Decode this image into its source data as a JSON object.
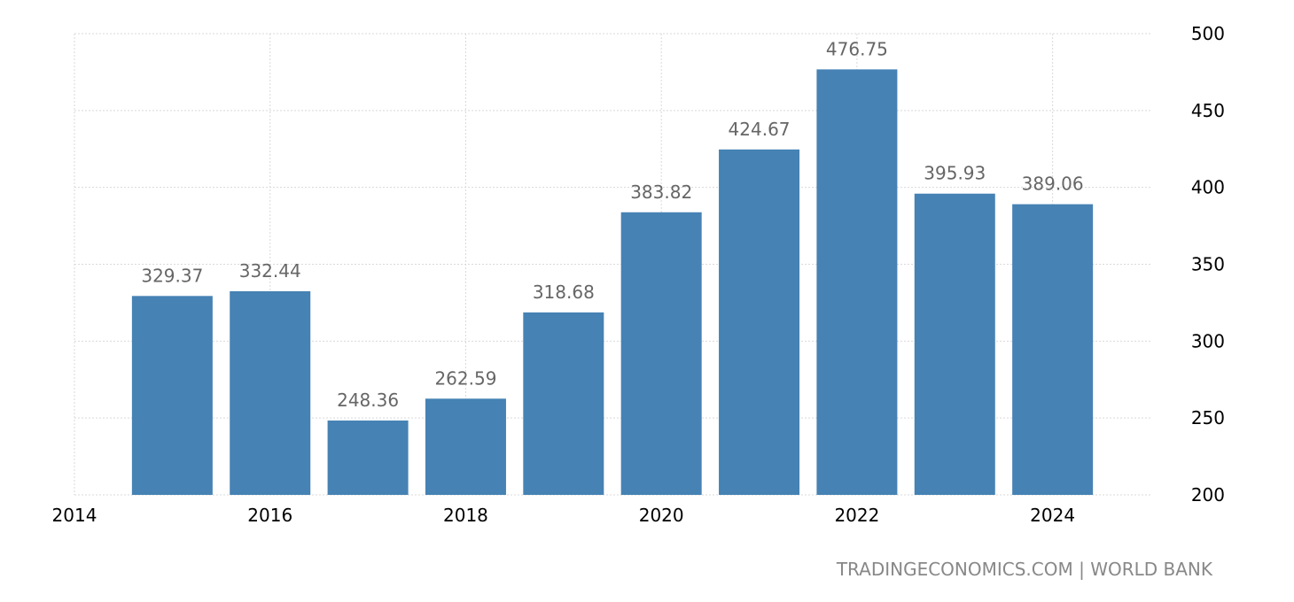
{
  "chart_data": {
    "type": "bar",
    "x": [
      2015,
      2016,
      2017,
      2018,
      2019,
      2020,
      2021,
      2022,
      2023,
      2024
    ],
    "values": [
      329.37,
      332.44,
      248.36,
      262.59,
      318.68,
      383.82,
      424.67,
      476.75,
      395.93,
      389.06
    ],
    "data_labels": [
      "329.37",
      "332.44",
      "248.36",
      "262.59",
      "318.68",
      "383.82",
      "424.67",
      "476.75",
      "395.93",
      "389.06"
    ],
    "x_ticks": [
      "2014",
      "2016",
      "2018",
      "2020",
      "2022",
      "2024"
    ],
    "x_tick_values": [
      2014,
      2016,
      2018,
      2020,
      2022,
      2024
    ],
    "xlim": [
      2014,
      2025
    ],
    "y_ticks": [
      "500",
      "450",
      "400",
      "350",
      "300",
      "250",
      "200"
    ],
    "y_tick_values": [
      500,
      450,
      400,
      350,
      300,
      250,
      200
    ],
    "ylim": [
      200,
      500
    ],
    "y_axis_side": "right",
    "grid": true,
    "bar_color": "#4682b4",
    "title": "",
    "xlabel": "",
    "ylabel": ""
  },
  "footer": {
    "source": "TRADINGECONOMICS.COM | WORLD BANK"
  }
}
